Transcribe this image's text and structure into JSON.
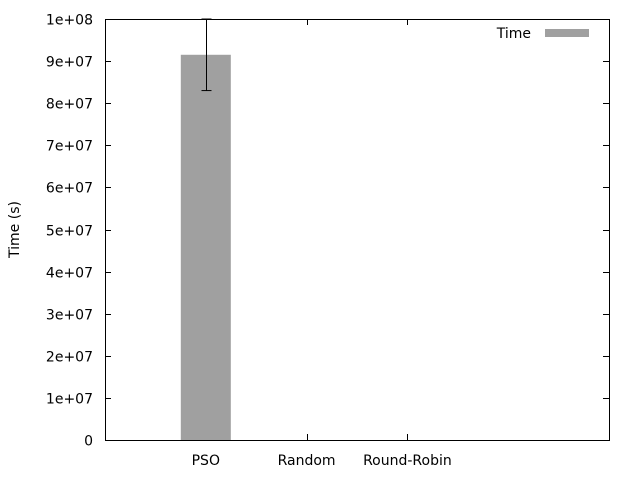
{
  "chart_data": {
    "type": "bar",
    "title": "",
    "xlabel": "",
    "ylabel": "Time (s)",
    "categories": [
      "PSO",
      "Random",
      "Round-Robin"
    ],
    "series": [
      {
        "name": "Time",
        "values": [
          91500000,
          0,
          0
        ],
        "error": [
          8500000,
          0,
          0
        ],
        "color": "#a0a0a0"
      }
    ],
    "ylim": [
      0,
      100000000
    ],
    "yticks": [
      0,
      10000000,
      20000000,
      30000000,
      40000000,
      50000000,
      60000000,
      70000000,
      80000000,
      90000000,
      100000000
    ],
    "ytick_labels": [
      "0",
      "1e+07",
      "2e+07",
      "3e+07",
      "4e+07",
      "5e+07",
      "6e+07",
      "7e+07",
      "8e+07",
      "9e+07",
      "1e+08"
    ],
    "legend_position": "top-right",
    "grid": false
  }
}
